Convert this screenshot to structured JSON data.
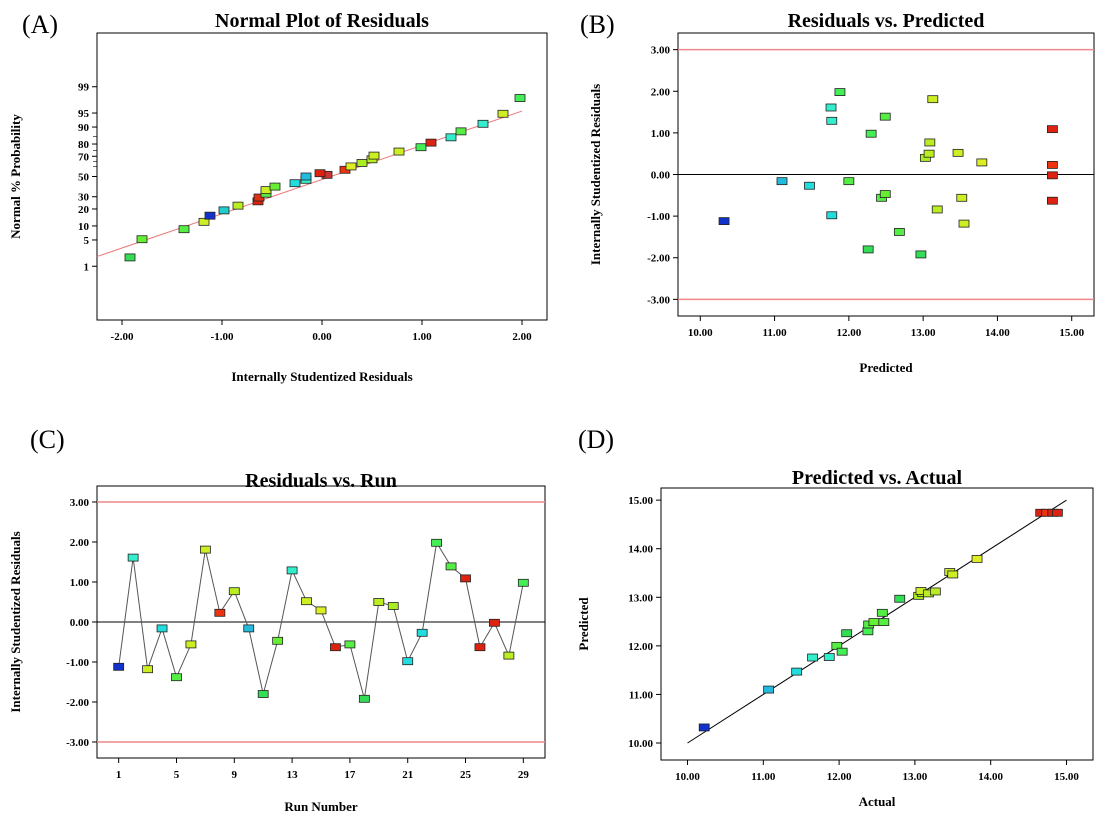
{
  "panels": [
    {
      "label": "(A)",
      "chart_data": {
        "type": "scatter",
        "title": "Normal Plot of Residuals",
        "xlabel": "Internally Studentized Residuals",
        "ylabel": "Normal % Probability",
        "xlim": [
          -2.25,
          2.25
        ],
        "ylim": [
          0.01,
          99.99
        ],
        "yscale": "normal probability",
        "xticks": [
          "-2.00",
          "-1.00",
          "0.00",
          "1.00",
          "2.00"
        ],
        "yticks": [
          "1",
          "5",
          "10",
          "20",
          "30",
          "50",
          "70",
          "80",
          "90",
          "95",
          "99"
        ],
        "fit_line": [
          [
            -2.25,
            1.9
          ],
          [
            2.0,
            95.5
          ]
        ],
        "points": [
          {
            "x": -1.92,
            "y": 1.8,
            "color": "#33dd55"
          },
          {
            "x": -1.8,
            "y": 5.2,
            "color": "#66ee33"
          },
          {
            "x": -1.38,
            "y": 8.6,
            "color": "#55ee44"
          },
          {
            "x": -1.18,
            "y": 12.0,
            "color": "#ccee22"
          },
          {
            "x": -1.12,
            "y": 15.5,
            "color": "#1133cc"
          },
          {
            "x": -0.98,
            "y": 19.0,
            "color": "#22cccc"
          },
          {
            "x": -0.84,
            "y": 22.5,
            "color": "#bbee22"
          },
          {
            "x": -0.64,
            "y": 26.0,
            "color": "#dd2211"
          },
          {
            "x": -0.63,
            "y": 29.3,
            "color": "#dd3311"
          },
          {
            "x": -0.56,
            "y": 32.8,
            "color": "#55ee44"
          },
          {
            "x": -0.56,
            "y": 36.2,
            "color": "#ccee22"
          },
          {
            "x": -0.47,
            "y": 39.7,
            "color": "#66ee33"
          },
          {
            "x": -0.27,
            "y": 43.1,
            "color": "#22dddd"
          },
          {
            "x": -0.16,
            "y": 46.6,
            "color": "#33eecc"
          },
          {
            "x": -0.16,
            "y": 50.0,
            "color": "#22bbdd"
          },
          {
            "x": 0.05,
            "y": 51.7,
            "color": "#cc3333"
          },
          {
            "x": -0.02,
            "y": 53.4,
            "color": "#dd2211"
          },
          {
            "x": 0.23,
            "y": 56.9,
            "color": "#ee3311"
          },
          {
            "x": 0.29,
            "y": 60.3,
            "color": "#ddee22"
          },
          {
            "x": 0.4,
            "y": 63.7,
            "color": "#aaee22"
          },
          {
            "x": 0.5,
            "y": 67.2,
            "color": "#bbee22"
          },
          {
            "x": 0.52,
            "y": 70.6,
            "color": "#ccee22"
          },
          {
            "x": 0.77,
            "y": 74.1,
            "color": "#ccee22"
          },
          {
            "x": 0.99,
            "y": 77.6,
            "color": "#44ee55"
          },
          {
            "x": 1.09,
            "y": 81.0,
            "color": "#dd2211"
          },
          {
            "x": 1.29,
            "y": 84.5,
            "color": "#33eecc"
          },
          {
            "x": 1.39,
            "y": 87.9,
            "color": "#55ee44"
          },
          {
            "x": 1.61,
            "y": 91.4,
            "color": "#33eecc"
          },
          {
            "x": 1.81,
            "y": 94.8,
            "color": "#ccee22"
          },
          {
            "x": 1.98,
            "y": 97.9,
            "color": "#44ee55"
          }
        ]
      }
    },
    {
      "label": "(B)",
      "chart_data": {
        "type": "scatter",
        "title": "Residuals vs. Predicted",
        "xlabel": "Predicted",
        "ylabel": "Internally Studentized Residuals",
        "xlim": [
          9.7,
          15.3
        ],
        "ylim": [
          -3.4,
          3.4
        ],
        "xticks": [
          "10.00",
          "11.00",
          "12.00",
          "13.00",
          "14.00",
          "15.00"
        ],
        "yticks": [
          "-3.00",
          "-2.00",
          "-1.00",
          "0.00",
          "1.00",
          "2.00",
          "3.00"
        ],
        "limit_lines": [
          3.0,
          -3.0
        ],
        "zero_line": 0,
        "points": [
          {
            "x": 10.32,
            "y": -1.12,
            "color": "#1133cc"
          },
          {
            "x": 11.1,
            "y": -0.16,
            "color": "#22bbdd"
          },
          {
            "x": 11.47,
            "y": -0.27,
            "color": "#22dddd"
          },
          {
            "x": 11.76,
            "y": 1.61,
            "color": "#33eecc"
          },
          {
            "x": 11.77,
            "y": 1.29,
            "color": "#33eecc"
          },
          {
            "x": 11.77,
            "y": -0.98,
            "color": "#22dddd"
          },
          {
            "x": 11.88,
            "y": 1.98,
            "color": "#44ee55"
          },
          {
            "x": 12.0,
            "y": -0.16,
            "color": "#55ee44"
          },
          {
            "x": 12.26,
            "y": -1.8,
            "color": "#33dd55"
          },
          {
            "x": 12.3,
            "y": 0.98,
            "color": "#44ee55"
          },
          {
            "x": 12.44,
            "y": -0.56,
            "color": "#55ee44"
          },
          {
            "x": 12.49,
            "y": 1.39,
            "color": "#55ee44"
          },
          {
            "x": 12.49,
            "y": -0.47,
            "color": "#66ee33"
          },
          {
            "x": 12.68,
            "y": -1.38,
            "color": "#55ee44"
          },
          {
            "x": 12.97,
            "y": -1.92,
            "color": "#33dd55"
          },
          {
            "x": 13.03,
            "y": 0.4,
            "color": "#aaee22"
          },
          {
            "x": 13.08,
            "y": 0.5,
            "color": "#bbee22"
          },
          {
            "x": 13.09,
            "y": 0.77,
            "color": "#bbee22"
          },
          {
            "x": 13.13,
            "y": 1.81,
            "color": "#ccee22"
          },
          {
            "x": 13.19,
            "y": -0.84,
            "color": "#bbee22"
          },
          {
            "x": 13.47,
            "y": 0.52,
            "color": "#ccee22"
          },
          {
            "x": 13.52,
            "y": -0.56,
            "color": "#ccee22"
          },
          {
            "x": 13.55,
            "y": -1.18,
            "color": "#ccee22"
          },
          {
            "x": 13.79,
            "y": 0.29,
            "color": "#ddee22"
          },
          {
            "x": 14.74,
            "y": 1.09,
            "color": "#dd2211"
          },
          {
            "x": 14.74,
            "y": 0.23,
            "color": "#ee3311"
          },
          {
            "x": 14.74,
            "y": -0.02,
            "color": "#dd2211"
          },
          {
            "x": 14.74,
            "y": -0.63,
            "color": "#dd2211"
          }
        ]
      }
    },
    {
      "label": "(C)",
      "chart_data": {
        "type": "line",
        "title": "Residuals vs. Run",
        "xlabel": "Run Number",
        "ylabel": "Internally Studentized Residuals",
        "xlim": [
          -0.5,
          30.5
        ],
        "ylim": [
          -3.4,
          3.4
        ],
        "xticks": [
          "1",
          "5",
          "9",
          "13",
          "17",
          "21",
          "25",
          "29"
        ],
        "yticks": [
          "-3.00",
          "-2.00",
          "-1.00",
          "0.00",
          "1.00",
          "2.00",
          "3.00"
        ],
        "limit_lines": [
          3.0,
          -3.0
        ],
        "zero_line": 0,
        "x": [
          1,
          2,
          3,
          4,
          5,
          6,
          7,
          8,
          9,
          10,
          11,
          12,
          13,
          14,
          15,
          16,
          17,
          18,
          19,
          20,
          21,
          22,
          23,
          24,
          25,
          26,
          27,
          28,
          29
        ],
        "values": [
          -1.12,
          1.61,
          -1.18,
          -0.16,
          -1.38,
          -0.56,
          1.81,
          0.23,
          0.77,
          -0.16,
          -1.8,
          -0.47,
          1.29,
          0.52,
          0.29,
          -0.63,
          -0.56,
          -1.92,
          0.5,
          0.4,
          -0.98,
          -0.27,
          1.98,
          1.39,
          1.09,
          -0.63,
          -0.02,
          -0.84,
          0.98
        ],
        "colors": [
          "#1133cc",
          "#33eecc",
          "#ccee22",
          "#22dddd",
          "#55ee44",
          "#ccee22",
          "#ccee22",
          "#ee3311",
          "#bbee22",
          "#22bbdd",
          "#33dd55",
          "#66ee33",
          "#33eecc",
          "#ccee22",
          "#ddee22",
          "#dd2211",
          "#55ee44",
          "#33dd55",
          "#bbee22",
          "#aaee22",
          "#22dddd",
          "#22dddd",
          "#44ee55",
          "#55ee44",
          "#dd2211",
          "#dd2211",
          "#dd2211",
          "#bbee22",
          "#44ee55"
        ]
      }
    },
    {
      "label": "(D)",
      "chart_data": {
        "type": "scatter",
        "title": "Predicted vs. Actual",
        "xlabel": "Actual",
        "ylabel": "Predicted",
        "xlim": [
          9.65,
          15.35
        ],
        "ylim": [
          9.65,
          15.25
        ],
        "xticks": [
          "10.00",
          "11.00",
          "12.00",
          "13.00",
          "14.00",
          "15.00"
        ],
        "yticks": [
          "10.00",
          "11.00",
          "12.00",
          "13.00",
          "14.00",
          "15.00"
        ],
        "fit_line": [
          [
            10.0,
            10.0
          ],
          [
            15.0,
            15.0
          ]
        ],
        "points": [
          {
            "x": 10.22,
            "y": 10.32,
            "color": "#1133cc"
          },
          {
            "x": 11.07,
            "y": 11.1,
            "color": "#22bbdd"
          },
          {
            "x": 11.44,
            "y": 11.47,
            "color": "#22dddd"
          },
          {
            "x": 11.65,
            "y": 11.76,
            "color": "#33eecc"
          },
          {
            "x": 11.87,
            "y": 11.77,
            "color": "#33eecc"
          },
          {
            "x": 11.97,
            "y": 12.0,
            "color": "#55ee44"
          },
          {
            "x": 12.04,
            "y": 11.88,
            "color": "#44ee55"
          },
          {
            "x": 12.1,
            "y": 12.26,
            "color": "#33dd55"
          },
          {
            "x": 12.38,
            "y": 12.3,
            "color": "#44ee55"
          },
          {
            "x": 12.39,
            "y": 12.44,
            "color": "#55ee44"
          },
          {
            "x": 12.46,
            "y": 12.49,
            "color": "#66ee33"
          },
          {
            "x": 12.59,
            "y": 12.49,
            "color": "#55ee44"
          },
          {
            "x": 12.57,
            "y": 12.68,
            "color": "#55ee44"
          },
          {
            "x": 12.8,
            "y": 12.97,
            "color": "#33dd55"
          },
          {
            "x": 13.05,
            "y": 13.03,
            "color": "#aaee22"
          },
          {
            "x": 13.1,
            "y": 13.09,
            "color": "#bbee22"
          },
          {
            "x": 13.08,
            "y": 13.13,
            "color": "#ccee22"
          },
          {
            "x": 13.18,
            "y": 13.08,
            "color": "#bbee22"
          },
          {
            "x": 13.27,
            "y": 13.12,
            "color": "#bbee22"
          },
          {
            "x": 13.46,
            "y": 13.52,
            "color": "#ccee22"
          },
          {
            "x": 13.5,
            "y": 13.47,
            "color": "#ccee22"
          },
          {
            "x": 13.82,
            "y": 13.79,
            "color": "#ddee22"
          },
          {
            "x": 14.66,
            "y": 14.74,
            "color": "#dd2211"
          },
          {
            "x": 14.74,
            "y": 14.74,
            "color": "#ee3311"
          },
          {
            "x": 14.82,
            "y": 14.74,
            "color": "#dd2211"
          },
          {
            "x": 14.88,
            "y": 14.74,
            "color": "#dd2211"
          }
        ]
      }
    }
  ]
}
